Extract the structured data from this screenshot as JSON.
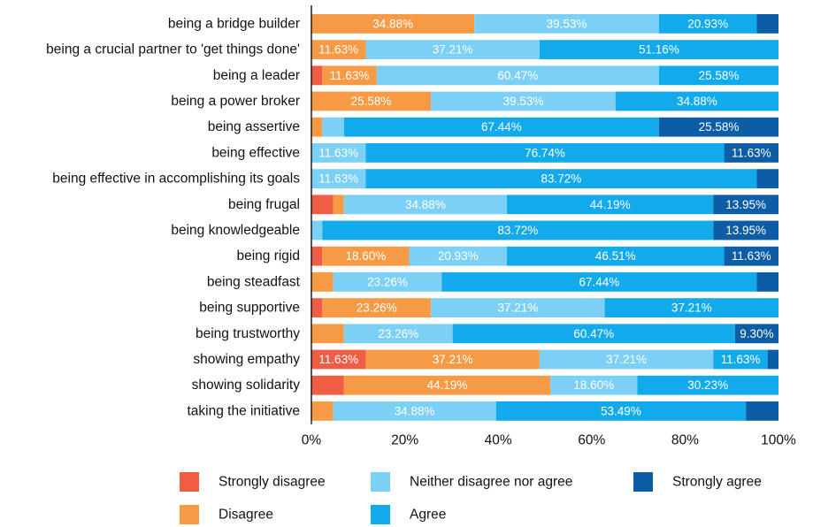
{
  "chart_data": {
    "type": "bar",
    "orientation": "horizontal",
    "stacked": true,
    "categories": [
      "being a bridge builder",
      "being a crucial partner to 'get things done'",
      "being a leader",
      "being a power broker",
      "being assertive",
      "being effective",
      "being effective in accomplishing its goals",
      "being frugal",
      "being knowledgeable",
      "being rigid",
      "being steadfast",
      "being supportive",
      "being trustworthy",
      "showing empathy",
      "showing solidarity",
      "taking the initiative"
    ],
    "series": [
      {
        "name": "Strongly disagree",
        "color": "#ef5d45",
        "values": [
          0,
          0,
          2.33,
          0,
          0,
          0,
          0,
          4.65,
          0,
          2.33,
          0,
          2.33,
          0,
          11.63,
          6.98,
          0
        ],
        "labels": [
          "",
          "",
          "",
          "",
          "",
          "",
          "",
          "",
          "",
          "",
          "",
          "",
          "",
          "11.63%",
          "",
          ""
        ]
      },
      {
        "name": "Disagree",
        "color": "#f79a46",
        "values": [
          34.88,
          11.63,
          11.63,
          25.58,
          2.33,
          0,
          0,
          2.33,
          0,
          18.6,
          4.65,
          23.26,
          6.98,
          37.21,
          44.19,
          4.65
        ],
        "labels": [
          "34.88%",
          "11.63%",
          "11.63%",
          "25.58%",
          "",
          "",
          "",
          "",
          "",
          "18.60%",
          "",
          "23.26%",
          "",
          "37.21%",
          "44.19%",
          ""
        ]
      },
      {
        "name": "Neither disagree nor agree",
        "color": "#7cd0f6",
        "values": [
          39.53,
          37.21,
          60.47,
          39.53,
          4.65,
          11.63,
          11.63,
          34.88,
          2.33,
          20.93,
          23.26,
          37.21,
          23.26,
          37.21,
          18.6,
          34.88
        ],
        "labels": [
          "39.53%",
          "37.21%",
          "60.47%",
          "39.53%",
          "",
          "11.63%",
          "11.63%",
          "34.88%",
          "",
          "20.93%",
          "23.26%",
          "37.21%",
          "23.26%",
          "37.21%",
          "18.60%",
          "34.88%"
        ]
      },
      {
        "name": "Agree",
        "color": "#12aaeb",
        "values": [
          20.93,
          51.16,
          25.58,
          34.88,
          67.44,
          76.74,
          83.72,
          44.19,
          83.72,
          46.51,
          67.44,
          37.21,
          60.47,
          11.63,
          30.23,
          53.49
        ],
        "labels": [
          "20.93%",
          "51.16%",
          "25.58%",
          "34.88%",
          "67.44%",
          "76.74%",
          "83.72%",
          "44.19%",
          "83.72%",
          "46.51%",
          "67.44%",
          "37.21%",
          "60.47%",
          "11.63%",
          "30.23%",
          "53.49%"
        ]
      },
      {
        "name": "Strongly agree",
        "color": "#0c5ca6",
        "values": [
          4.65,
          0,
          0,
          0,
          25.58,
          11.63,
          4.65,
          13.95,
          13.95,
          11.63,
          4.65,
          0,
          9.3,
          2.33,
          0,
          6.98
        ],
        "labels": [
          "",
          "",
          "",
          "",
          "25.58%",
          "11.63%",
          "",
          "13.95%",
          "13.95%",
          "11.63%",
          "",
          "",
          "9.30%",
          "",
          "",
          ""
        ]
      }
    ],
    "x_ticks": [
      "0%",
      "20%",
      "40%",
      "60%",
      "80%",
      "100%"
    ],
    "xlim": [
      0,
      100
    ],
    "title": "",
    "xlabel": "",
    "ylabel": "",
    "grid": false,
    "legend": {
      "position": "bottom",
      "order": [
        "Strongly disagree",
        "Neither disagree nor agree",
        "Strongly agree",
        "Disagree",
        "Agree"
      ]
    }
  }
}
